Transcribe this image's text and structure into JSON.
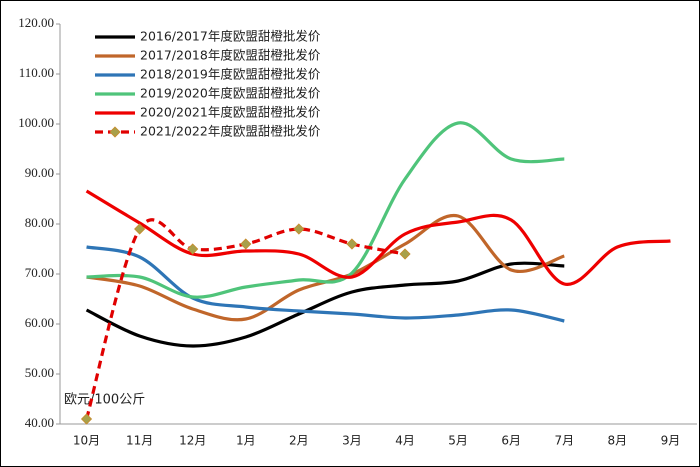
{
  "chart_data": {
    "type": "line",
    "y_label": "欧元/100公斤",
    "categories": [
      "10月",
      "11月",
      "12月",
      "1月",
      "2月",
      "3月",
      "4月",
      "5月",
      "6月",
      "7月",
      "8月",
      "9月"
    ],
    "ylim": [
      40,
      120
    ],
    "yticks": [
      {
        "value": 40,
        "label": "40.00"
      },
      {
        "value": 50,
        "label": "50.00"
      },
      {
        "value": 60,
        "label": "60.00"
      },
      {
        "value": 70,
        "label": "70.00"
      },
      {
        "value": 80,
        "label": "80.00"
      },
      {
        "value": 90,
        "label": "90.00"
      },
      {
        "value": 100,
        "label": "100.00"
      },
      {
        "value": 110,
        "label": "110.00"
      },
      {
        "value": 120,
        "label": "120.00"
      }
    ],
    "grid": false,
    "smooth": true,
    "legend": "top-left",
    "series": [
      {
        "name": "2016/2017年度欧盟甜橙批发价",
        "color": "#000000",
        "values": [
          62.8,
          57.6,
          55.6,
          57.4,
          62,
          66.4,
          67.8,
          68.6,
          72,
          71.6,
          null,
          null
        ]
      },
      {
        "name": "2017/2018年度欧盟甜橙批发价",
        "color": "#c0662a",
        "values": [
          69.4,
          67.6,
          63,
          61,
          66.8,
          70,
          76,
          81.6,
          70.8,
          73.6,
          null,
          null
        ]
      },
      {
        "name": "2018/2019年度欧盟甜橙批发价",
        "color": "#2e75b6",
        "values": [
          75.4,
          73.4,
          65.2,
          63.4,
          62.6,
          62,
          61.2,
          61.8,
          62.8,
          60.6,
          null,
          null
        ]
      },
      {
        "name": "2019/2020年度欧盟甜橙批发价",
        "color": "#4fc47a",
        "values": [
          69.4,
          69.4,
          65.4,
          67.4,
          68.8,
          70.2,
          89,
          100.2,
          93,
          93,
          null,
          null
        ]
      },
      {
        "name": "2020/2021年度欧盟甜橙批发价",
        "color": "#ee0000",
        "values": [
          86.6,
          80.2,
          74,
          74.6,
          74,
          69.4,
          78,
          80.4,
          80.8,
          68,
          75.4,
          76.6
        ]
      },
      {
        "name": "2021/2022年度欧盟甜橙批发价",
        "color": "#e00000",
        "dashed": true,
        "marker": "diamond",
        "marker_color": "#a8a04a",
        "values": [
          41,
          79,
          75,
          76,
          79,
          76,
          74,
          null,
          null,
          null,
          null,
          null
        ]
      }
    ]
  }
}
